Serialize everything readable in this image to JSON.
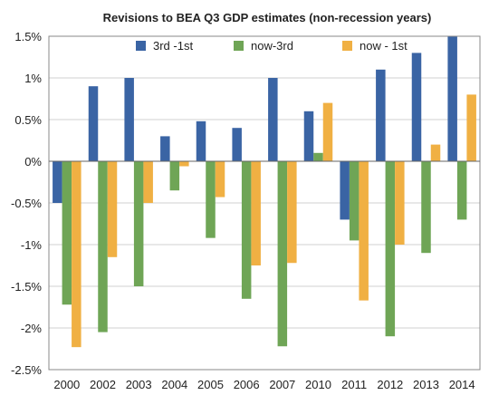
{
  "chart_data": {
    "type": "bar",
    "title": "Revisions to BEA  Q3 GDP estimates (non-recession years)",
    "xlabel": "",
    "ylabel": "",
    "categories": [
      "2000",
      "2002",
      "2003",
      "2004",
      "2005",
      "2006",
      "2007",
      "2010",
      "2011",
      "2012",
      "2013",
      "2014"
    ],
    "series": [
      {
        "name": "3rd -1st",
        "color": "#3a64a4",
        "values": [
          -0.5,
          0.9,
          1.0,
          0.3,
          0.48,
          0.4,
          1.0,
          0.6,
          -0.7,
          1.1,
          1.3,
          1.5
        ]
      },
      {
        "name": "now-3rd",
        "color": "#6fa556",
        "values": [
          -1.72,
          -2.05,
          -1.5,
          -0.35,
          -0.92,
          -1.65,
          -2.22,
          0.1,
          -0.95,
          -2.1,
          -1.1,
          -0.7
        ]
      },
      {
        "name": "now - 1st",
        "color": "#f0b043",
        "values": [
          -2.23,
          -1.15,
          -0.5,
          -0.06,
          -0.43,
          -1.25,
          -1.22,
          0.7,
          -1.67,
          -1.0,
          0.2,
          0.8
        ]
      }
    ],
    "ylim": [
      -2.5,
      1.5
    ],
    "yticks": [
      -2.5,
      -2.0,
      -1.5,
      -1.0,
      -0.5,
      0,
      0.5,
      1.0,
      1.5
    ],
    "ytick_labels": [
      "-2.5%",
      "-2%",
      "-1.5%",
      "-1%",
      "-0.5%",
      "0%",
      "0.5%",
      "1%",
      "1.5%"
    ],
    "grid": true,
    "legend_position": "top"
  }
}
